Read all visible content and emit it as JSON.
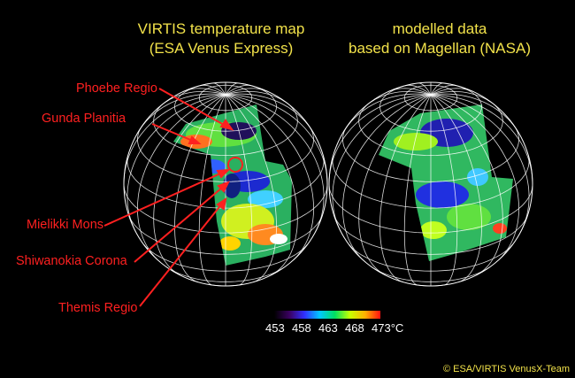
{
  "titles": {
    "left": [
      "VIRTIS temperature map",
      "(ESA Venus Express)"
    ],
    "right": [
      "modelled data",
      "based on Magellan (NASA)"
    ]
  },
  "features": [
    {
      "name": "Phoebe Regio"
    },
    {
      "name": "Gunda Planitia"
    },
    {
      "name": "Mielikki Mons"
    },
    {
      "name": "Shiwanokia Corona"
    },
    {
      "name": "Themis Regio"
    }
  ],
  "colorbar": {
    "ticks": [
      "453",
      "458",
      "463",
      "468",
      "473"
    ],
    "unit": "°C",
    "colors": [
      "#000000",
      "#3a0060",
      "#3030ff",
      "#00c8ff",
      "#00e060",
      "#c8ff00",
      "#ffb000",
      "#ff1010"
    ]
  },
  "credit": "© ESA/VIRTIS VenusX-Team",
  "colors": {
    "title": "#f2e24a",
    "labels": "#ff2020",
    "grid": "#ffffff"
  }
}
